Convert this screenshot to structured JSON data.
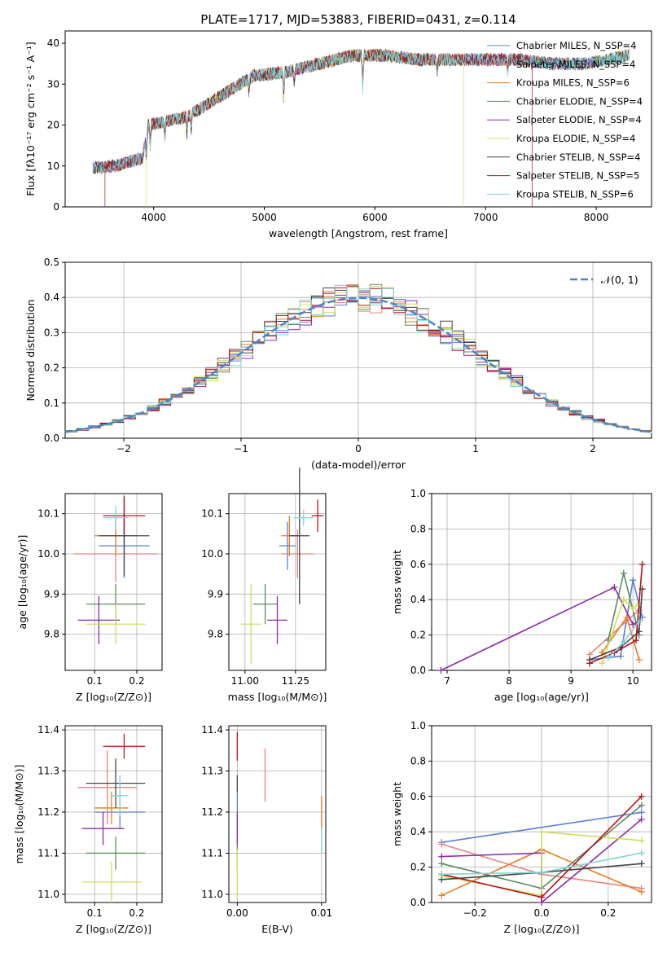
{
  "title": "PLATE=1717, MJD=53883, FIBERID=0431, z=0.114",
  "colors": {
    "c0": "#5b7fd6",
    "c1": "#e8837f",
    "c2": "#e67e22",
    "c3": "#5f8a5f",
    "c4": "#8e2ca8",
    "c5": "#c9e05a",
    "c6": "#444444",
    "c7": "#b5141b",
    "c8": "#7fd3d8"
  },
  "chart_data": [
    {
      "id": "spectrum",
      "type": "line",
      "xlabel": "wavelength [Angstrom, rest frame]",
      "ylabel": "Flux [fλ10⁻¹⁷ erg cm⁻² s⁻¹ A⁻¹]",
      "xlim": [
        3200,
        8500
      ],
      "ylim": [
        0,
        43
      ],
      "xticks": [
        "4000",
        "5000",
        "6000",
        "7000",
        "8000"
      ],
      "yticks": [
        "0",
        "10",
        "20",
        "30",
        "40"
      ],
      "envelope_x": [
        3450,
        3650,
        3900,
        3950,
        4300,
        4600,
        4900,
        5200,
        5500,
        5800,
        6100,
        6400,
        6700,
        7000,
        7300,
        7600,
        7900,
        8300
      ],
      "envelope_y": [
        9.5,
        10,
        12,
        20,
        22,
        27,
        32,
        33,
        35,
        37,
        37,
        36,
        36,
        36,
        36,
        35,
        35,
        37
      ],
      "legend": [
        "Chabrier MILES, N_SSP=4",
        "Salpeter MILES, N_SSP=4",
        "Kroupa MILES, N_SSP=6",
        "Chabrier ELODIE, N_SSP=4",
        "Salpeter ELODIE, N_SSP=4",
        "Kroupa ELODIE, N_SSP=4",
        "Chabrier STELIB, N_SSP=4",
        "Salpeter STELIB, N_SSP=5",
        "Kroupa STELIB, N_SSP=6"
      ],
      "legend_placement": "upper right"
    },
    {
      "id": "residuals",
      "type": "line",
      "xlabel": "(data-model)/error",
      "ylabel": "Normed distribution",
      "xlim": [
        -2.5,
        2.5
      ],
      "ylim": [
        0,
        0.5
      ],
      "xticks": [
        "−2",
        "−1",
        "0",
        "1",
        "2"
      ],
      "yticks": [
        "0.0",
        "0.1",
        "0.2",
        "0.3",
        "0.4",
        "0.5"
      ],
      "legend": [
        "𝒩(0, 1)"
      ],
      "legend_placement": "upper right",
      "grid": true
    },
    {
      "id": "z-age",
      "type": "scatter",
      "xlabel": "Z [log₁₀(Z/Z⊙)]",
      "ylabel": "age  [log₁₀(age/yr)]",
      "xlim": [
        0.03,
        0.26
      ],
      "ylim": [
        9.71,
        10.15
      ],
      "xticks": [
        "0.1",
        "0.2"
      ],
      "yticks": [
        "9.8",
        "9.9",
        "10.0",
        "10.1"
      ],
      "points": [
        {
          "x": 0.17,
          "y": 10.02,
          "ex": 0.06,
          "ey": 0.08,
          "c": "c0"
        },
        {
          "x": 0.15,
          "y": 10.0,
          "ex": 0.1,
          "ey": 0.07,
          "c": "c1"
        },
        {
          "x": 0.15,
          "y": 10.045,
          "ex": 0.05,
          "ey": 0.05,
          "c": "c2"
        },
        {
          "x": 0.15,
          "y": 9.875,
          "ex": 0.07,
          "ey": 0.05,
          "c": "c3"
        },
        {
          "x": 0.11,
          "y": 9.835,
          "ex": 0.05,
          "ey": 0.06,
          "c": "c4"
        },
        {
          "x": 0.15,
          "y": 9.825,
          "ex": 0.07,
          "ey": 0.05,
          "c": "c5"
        },
        {
          "x": 0.17,
          "y": 10.045,
          "ex": 0.06,
          "ey": 0.1,
          "c": "c6"
        },
        {
          "x": 0.17,
          "y": 10.095,
          "ex": 0.05,
          "ey": 0.045,
          "c": "c7"
        },
        {
          "x": 0.15,
          "y": 10.09,
          "ex": 0.03,
          "ey": 0.03,
          "c": "c8"
        }
      ]
    },
    {
      "id": "mass-age",
      "type": "scatter",
      "xlabel": "mass [log₁₀(M/M⊙)]",
      "ylabel": "",
      "xlim": [
        10.92,
        11.4
      ],
      "ylim": [
        9.71,
        10.15
      ],
      "xticks": [
        "11.00",
        "11.25"
      ],
      "yticks": [
        "9.8",
        "9.9",
        "10.0",
        "10.1"
      ],
      "points": [
        {
          "x": 11.21,
          "y": 10.02,
          "ex": 0.04,
          "ey": 0.06,
          "c": "c0"
        },
        {
          "x": 11.26,
          "y": 10.0,
          "ex": 0.08,
          "ey": 0.06,
          "c": "c1"
        },
        {
          "x": 11.22,
          "y": 10.045,
          "ex": 0.04,
          "ey": 0.05,
          "c": "c2"
        },
        {
          "x": 11.1,
          "y": 9.875,
          "ex": 0.06,
          "ey": 0.05,
          "c": "c3"
        },
        {
          "x": 11.16,
          "y": 9.835,
          "ex": 0.05,
          "ey": 0.06,
          "c": "c4"
        },
        {
          "x": 11.03,
          "y": 9.825,
          "ex": 0.05,
          "ey": 0.1,
          "c": "c5"
        },
        {
          "x": 11.27,
          "y": 10.045,
          "ex": 0.05,
          "ey": 0.17,
          "c": "c6"
        },
        {
          "x": 11.36,
          "y": 10.095,
          "ex": 0.03,
          "ey": 0.04,
          "c": "c7"
        },
        {
          "x": 11.29,
          "y": 10.09,
          "ex": 0.05,
          "ey": 0.02,
          "c": "c8"
        }
      ]
    },
    {
      "id": "age-weight",
      "type": "line",
      "xlabel": "age  [log₁₀(age/yr)]",
      "ylabel": "mass weight",
      "xlim": [
        6.75,
        10.3
      ],
      "ylim": [
        0,
        1
      ],
      "xticks": [
        "7",
        "8",
        "9",
        "10"
      ],
      "yticks": [
        "0.0",
        "0.2",
        "0.4",
        "0.6",
        "0.8",
        "1.0"
      ],
      "series": [
        {
          "c": "c0",
          "x": [
            9.3,
            9.8,
            10.0,
            10.15
          ],
          "y": [
            0.06,
            0.08,
            0.51,
            0.3
          ]
        },
        {
          "c": "c1",
          "x": [
            9.3,
            9.9,
            10.1
          ],
          "y": [
            0.09,
            0.28,
            0.34
          ]
        },
        {
          "c": "c2",
          "x": [
            9.5,
            9.9,
            10.1
          ],
          "y": [
            0.1,
            0.3,
            0.06
          ]
        },
        {
          "c": "c3",
          "x": [
            9.6,
            9.85,
            10.1
          ],
          "y": [
            0.17,
            0.55,
            0.2
          ]
        },
        {
          "c": "c4",
          "x": [
            6.9,
            9.7,
            10.0,
            10.1
          ],
          "y": [
            0.0,
            0.47,
            0.26,
            0.28
          ]
        },
        {
          "c": "c5",
          "x": [
            9.5,
            9.85,
            10.0,
            10.1
          ],
          "y": [
            0.04,
            0.4,
            0.35,
            0.38
          ]
        },
        {
          "c": "c6",
          "x": [
            9.3,
            9.8,
            10.1,
            10.15
          ],
          "y": [
            0.06,
            0.13,
            0.22,
            0.46
          ]
        },
        {
          "c": "c7",
          "x": [
            9.3,
            9.7,
            10.05,
            10.15
          ],
          "y": [
            0.04,
            0.1,
            0.17,
            0.6
          ]
        },
        {
          "c": "c8",
          "x": [
            9.6,
            9.85,
            10.1
          ],
          "y": [
            0.07,
            0.16,
            0.28
          ]
        }
      ]
    },
    {
      "id": "z-mass",
      "type": "scatter",
      "xlabel": "Z [log₁₀(Z/Z⊙)]",
      "ylabel": "mass [log₁₀(M/M⊙)]",
      "xlim": [
        0.03,
        0.26
      ],
      "ylim": [
        10.98,
        11.41
      ],
      "xticks": [
        "0.1",
        "0.2"
      ],
      "yticks": [
        "11.0",
        "11.1",
        "11.2",
        "11.3",
        "11.4"
      ],
      "points": [
        {
          "x": 0.16,
          "y": 11.2,
          "ex": 0.06,
          "ey": 0.04,
          "c": "c0"
        },
        {
          "x": 0.13,
          "y": 11.26,
          "ex": 0.07,
          "ey": 0.09,
          "c": "c1"
        },
        {
          "x": 0.14,
          "y": 11.21,
          "ex": 0.04,
          "ey": 0.04,
          "c": "c2"
        },
        {
          "x": 0.15,
          "y": 11.1,
          "ex": 0.07,
          "ey": 0.04,
          "c": "c3"
        },
        {
          "x": 0.12,
          "y": 11.16,
          "ex": 0.05,
          "ey": 0.04,
          "c": "c4"
        },
        {
          "x": 0.14,
          "y": 11.03,
          "ex": 0.07,
          "ey": 0.05,
          "c": "c5"
        },
        {
          "x": 0.15,
          "y": 11.27,
          "ex": 0.07,
          "ey": 0.06,
          "c": "c6"
        },
        {
          "x": 0.17,
          "y": 11.36,
          "ex": 0.05,
          "ey": 0.03,
          "c": "c7"
        },
        {
          "x": 0.16,
          "y": 11.24,
          "ex": 0.02,
          "ey": 0.05,
          "c": "c8"
        }
      ]
    },
    {
      "id": "ebv-mass",
      "type": "scatter",
      "xlabel": "E(B-V)",
      "ylabel": "",
      "xlim": [
        -0.001,
        0.0105
      ],
      "ylim": [
        10.98,
        11.41
      ],
      "xticks": [
        "0.00",
        "0.01"
      ],
      "yticks": [
        "11.0",
        "11.1",
        "11.2",
        "11.3",
        "11.4"
      ],
      "points": [
        {
          "x": 0.0,
          "y": 11.2,
          "ex": 0,
          "ey": 0.06,
          "c": "c0"
        },
        {
          "x": 0.0033,
          "y": 11.29,
          "ex": 0,
          "ey": 0.065,
          "c": "c1"
        },
        {
          "x": 0.01,
          "y": 11.2,
          "ex": 0,
          "ey": 0.04,
          "c": "c2"
        },
        {
          "x": 0.0,
          "y": 11.1,
          "ex": 0,
          "ey": 0.04,
          "c": "c3"
        },
        {
          "x": 0.0,
          "y": 11.16,
          "ex": 0,
          "ey": 0.04,
          "c": "c4"
        },
        {
          "x": 0.0,
          "y": 11.05,
          "ex": 0,
          "ey": 0.06,
          "c": "c5"
        },
        {
          "x": 0.0,
          "y": 11.27,
          "ex": 0,
          "ey": 0.02,
          "c": "c6"
        },
        {
          "x": 0.0,
          "y": 11.36,
          "ex": 0,
          "ey": 0.035,
          "c": "c7"
        },
        {
          "x": 0.01,
          "y": 11.13,
          "ex": 0,
          "ey": 0.03,
          "c": "c8"
        }
      ]
    },
    {
      "id": "z-weight",
      "type": "line",
      "xlabel": "Z [log₁₀(Z/Z⊙)]",
      "ylabel": "mass weight",
      "xlim": [
        -0.33,
        0.33
      ],
      "ylim": [
        0,
        1
      ],
      "xticks": [
        "−0.2",
        "0.0",
        "0.2"
      ],
      "yticks": [
        "0.0",
        "0.2",
        "0.4",
        "0.6",
        "0.8",
        "1.0"
      ],
      "series": [
        {
          "c": "c0",
          "x": [
            -0.3,
            0.3
          ],
          "y": [
            0.34,
            0.51
          ]
        },
        {
          "c": "c1",
          "x": [
            -0.3,
            0.0,
            0.3
          ],
          "y": [
            0.33,
            0.16,
            0.08
          ]
        },
        {
          "c": "c2",
          "x": [
            -0.3,
            0.0,
            0.3
          ],
          "y": [
            0.04,
            0.3,
            0.06
          ]
        },
        {
          "c": "c3",
          "x": [
            -0.3,
            0.0,
            0.3
          ],
          "y": [
            0.22,
            0.08,
            0.55
          ]
        },
        {
          "c": "c4",
          "x": [
            -0.3,
            0.0,
            0.0,
            0.3
          ],
          "y": [
            0.26,
            0.28,
            0.0,
            0.47
          ]
        },
        {
          "c": "c5",
          "x": [
            -0.3,
            0.0,
            0.0,
            0.3
          ],
          "y": [
            0.15,
            0.04,
            0.4,
            0.35
          ]
        },
        {
          "c": "c6",
          "x": [
            -0.3,
            0.0,
            0.3
          ],
          "y": [
            0.13,
            0.17,
            0.22
          ]
        },
        {
          "c": "c7",
          "x": [
            -0.3,
            0.0,
            0.3
          ],
          "y": [
            0.16,
            0.03,
            0.6
          ]
        },
        {
          "c": "c8",
          "x": [
            -0.3,
            0.0,
            0.3
          ],
          "y": [
            0.16,
            0.17,
            0.28
          ]
        }
      ]
    }
  ]
}
